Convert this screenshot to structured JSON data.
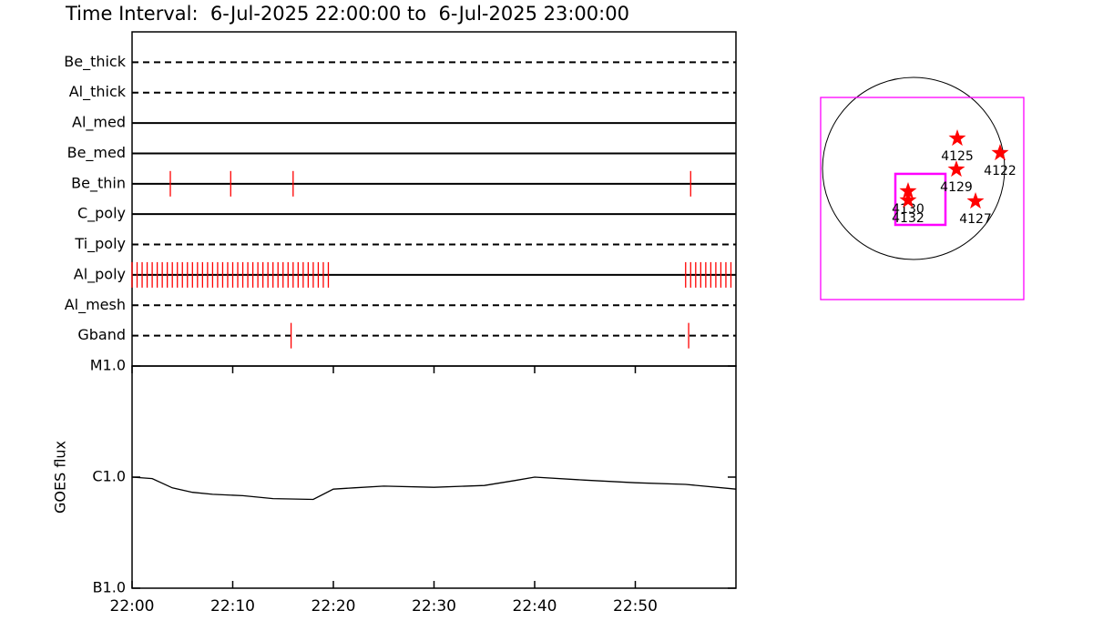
{
  "title": "Time Interval:  6-Jul-2025 22:00:00 to  6-Jul-2025 23:00:00",
  "chart_data": [
    {
      "type": "timeline",
      "xlim": [
        0,
        60
      ],
      "event_color": "#ff0000",
      "series": [
        {
          "name": "Be_thick",
          "style": "dashed",
          "events": []
        },
        {
          "name": "Al_thick",
          "style": "dashed",
          "events": []
        },
        {
          "name": "Al_med",
          "style": "solid",
          "events": []
        },
        {
          "name": "Be_med",
          "style": "solid",
          "events": []
        },
        {
          "name": "Be_thin",
          "style": "solid",
          "events": [
            3.8,
            9.8,
            16.0,
            55.5
          ]
        },
        {
          "name": "C_poly",
          "style": "solid",
          "events": []
        },
        {
          "name": "Ti_poly",
          "style": "dashed",
          "events": []
        },
        {
          "name": "Al_poly",
          "style": "solid",
          "events": [
            0,
            0.5,
            1,
            1.5,
            2,
            2.5,
            3,
            3.5,
            4,
            4.5,
            5,
            5.5,
            6,
            6.5,
            7,
            7.5,
            8,
            8.5,
            9,
            9.5,
            10,
            10.5,
            11,
            11.5,
            12,
            12.5,
            13,
            13.5,
            14,
            14.5,
            15,
            15.5,
            16,
            16.5,
            17,
            17.5,
            18,
            18.5,
            19,
            19.5,
            55,
            55.5,
            56,
            56.5,
            57,
            57.5,
            58,
            58.5,
            59,
            59.5
          ]
        },
        {
          "name": "Al_mesh",
          "style": "dashed",
          "events": []
        },
        {
          "name": "Gband",
          "style": "dashed",
          "events": [
            15.8,
            55.3
          ]
        }
      ]
    },
    {
      "type": "line",
      "ylabel": "GOES flux",
      "log_scale": true,
      "color": "#000000",
      "xlim": [
        0,
        60
      ],
      "xticks": [
        {
          "value": 0,
          "label": "22:00"
        },
        {
          "value": 10,
          "label": "22:10"
        },
        {
          "value": 20,
          "label": "22:20"
        },
        {
          "value": 30,
          "label": "22:30"
        },
        {
          "value": 40,
          "label": "22:40"
        },
        {
          "value": 50,
          "label": "22:50"
        }
      ],
      "ylim": [
        1e-07,
        1e-05
      ],
      "yticks": [
        {
          "value": 1e-07,
          "label": "B1.0"
        },
        {
          "value": 1e-06,
          "label": "C1.0"
        },
        {
          "value": 1e-05,
          "label": "M1.0"
        }
      ],
      "x": [
        0,
        2,
        4,
        6,
        8,
        11,
        14,
        18,
        20,
        22,
        25,
        30,
        35,
        38,
        40,
        45,
        50,
        55,
        60
      ],
      "values": [
        1e-06,
        9.7e-07,
        8e-07,
        7.3e-07,
        7e-07,
        6.8e-07,
        6.4e-07,
        6.3e-07,
        7.8e-07,
        8e-07,
        8.3e-07,
        8.1e-07,
        8.4e-07,
        9.3e-07,
        1e-06,
        9.4e-07,
        8.9e-07,
        8.6e-07,
        7.8e-07
      ]
    },
    {
      "type": "scatter",
      "sun_radius": 960,
      "marker_color": "#ff0000",
      "box_color": "#ff00ff",
      "boxes": [
        {
          "cx": 91,
          "cy": -317,
          "width": 2141,
          "height": 2131
        },
        {
          "cx": 72,
          "cy": -326,
          "width": 528,
          "height": 538
        }
      ],
      "points": [
        {
          "label": "4125",
          "x": 461,
          "y": 317
        },
        {
          "label": "4122",
          "x": 912,
          "y": 163
        },
        {
          "label": "4129",
          "x": 451,
          "y": -10
        },
        {
          "label": "4127",
          "x": 653,
          "y": -346
        },
        {
          "label": "4130",
          "x": -58,
          "y": -240
        },
        {
          "label": "4132",
          "x": -58,
          "y": -336
        }
      ]
    }
  ]
}
